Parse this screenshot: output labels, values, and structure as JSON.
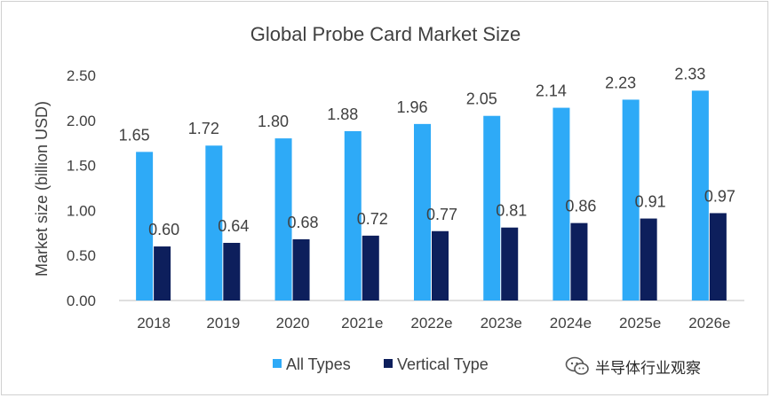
{
  "watermark": "半导体行业观察",
  "colors": {
    "all_types": "#2eaaf7",
    "vertical_type": "#0d1f5c",
    "text": "#404040"
  },
  "chart_data": {
    "type": "bar",
    "title": "Global Probe Card Market Size",
    "ylabel": "Market size (billion USD)",
    "xlabel": "",
    "ylim": [
      0,
      2.5
    ],
    "yticks": [
      "0.00",
      "0.50",
      "1.00",
      "1.50",
      "2.00",
      "2.50"
    ],
    "grid": false,
    "legend_position": "bottom",
    "categories": [
      "2018",
      "2019",
      "2020",
      "2021e",
      "2022e",
      "2023e",
      "2024e",
      "2025e",
      "2026e"
    ],
    "series": [
      {
        "name": "All Types",
        "values": [
          1.65,
          1.72,
          1.8,
          1.88,
          1.96,
          2.05,
          2.14,
          2.23,
          2.33
        ],
        "labels": [
          "1.65",
          "1.72",
          "1.80",
          "1.88",
          "1.96",
          "2.05",
          "2.14",
          "2.23",
          "2.33"
        ]
      },
      {
        "name": "Vertical Type",
        "values": [
          0.6,
          0.64,
          0.68,
          0.72,
          0.77,
          0.81,
          0.86,
          0.91,
          0.97
        ],
        "labels": [
          "0.60",
          "0.64",
          "0.68",
          "0.72",
          "0.77",
          "0.81",
          "0.86",
          "0.91",
          "0.97"
        ]
      }
    ]
  }
}
